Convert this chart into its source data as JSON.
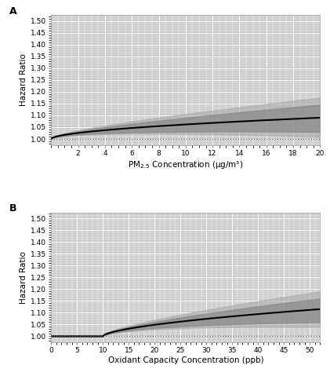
{
  "panel_A": {
    "label": "A",
    "x_min": 0,
    "x_max": 20,
    "x_ticks": [
      2,
      4,
      6,
      8,
      10,
      12,
      14,
      16,
      18,
      20
    ],
    "xlabel": "PM$_{2.5}$ Concentration (μg/m³)",
    "ylabel": "Hazard Ratio",
    "y_min": 0.975,
    "y_max": 1.525,
    "y_ticks": [
      1.0,
      1.05,
      1.1,
      1.15,
      1.2,
      1.25,
      1.3,
      1.35,
      1.4,
      1.45,
      1.5
    ],
    "hline_y": 1.0,
    "background_color": "#cacaca",
    "line_color": "#000000",
    "ci_color_dark": "#888888",
    "ci_color_light": "#aaaaaa",
    "dotted_line_color": "#666666",
    "fig_bg": "#ffffff"
  },
  "panel_B": {
    "label": "B",
    "x_min": 0,
    "x_max": 52,
    "x_ticks": [
      0,
      5,
      10,
      15,
      20,
      25,
      30,
      35,
      40,
      45,
      50
    ],
    "xlabel": "Oxidant Capacity Concentration (ppb)",
    "ylabel": "Hazard Ratio",
    "y_min": 0.975,
    "y_max": 1.525,
    "y_ticks": [
      1.0,
      1.05,
      1.1,
      1.15,
      1.2,
      1.25,
      1.3,
      1.35,
      1.4,
      1.45,
      1.5
    ],
    "hline_y": 1.0,
    "background_color": "#cacaca",
    "line_color": "#000000",
    "ci_color_dark": "#888888",
    "ci_color_light": "#aaaaaa",
    "dotted_line_color": "#666666",
    "fig_bg": "#ffffff"
  }
}
